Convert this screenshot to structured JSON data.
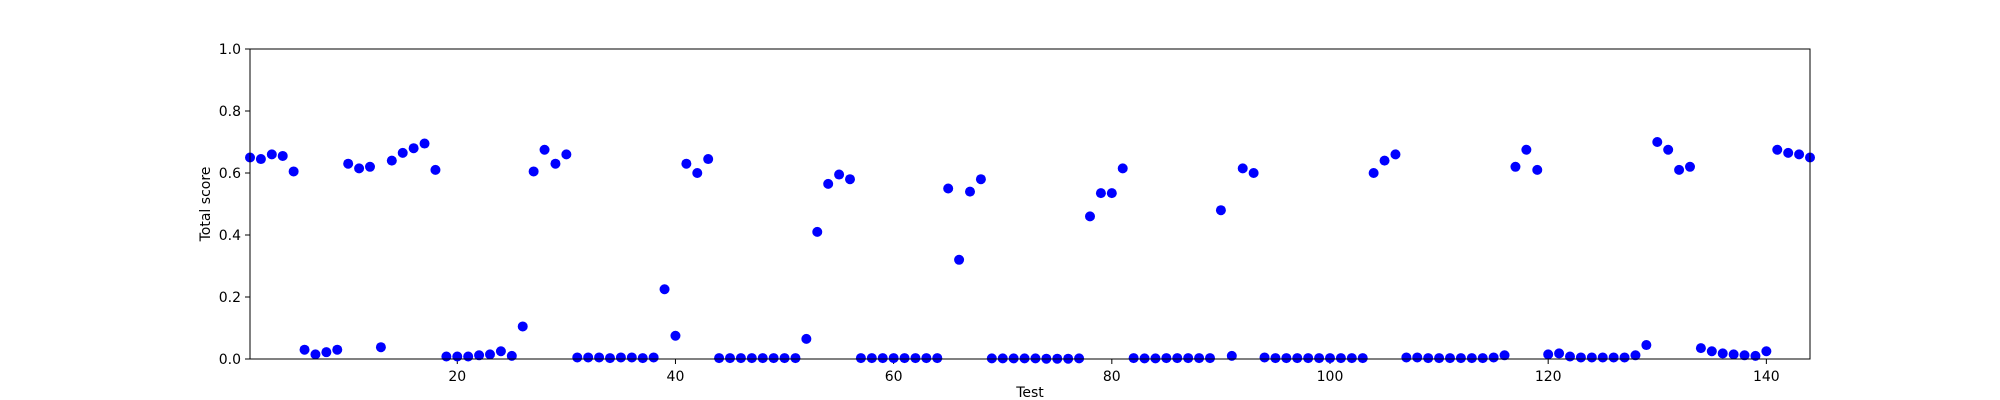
{
  "chart_data": {
    "type": "scatter",
    "title": "",
    "xlabel": "Test",
    "ylabel": "Total score",
    "xlim": [
      1,
      144
    ],
    "ylim": [
      0.0,
      1.0
    ],
    "xticks": [
      20,
      40,
      60,
      80,
      100,
      120,
      140
    ],
    "xtick_labels": [
      "20",
      "40",
      "60",
      "80",
      "100",
      "120",
      "140"
    ],
    "yticks": [
      0.0,
      0.2,
      0.4,
      0.6,
      0.8,
      1.0
    ],
    "ytick_labels": [
      "0.0",
      "0.2",
      "0.4",
      "0.6",
      "0.8",
      "1.0"
    ],
    "grid": false,
    "marker_color": "#0000ff",
    "series": [
      {
        "x": [
          1,
          2,
          3,
          4,
          5,
          6,
          7,
          8,
          9,
          10,
          11,
          12,
          13,
          14,
          15,
          16,
          17,
          18,
          19,
          20,
          21,
          22,
          23,
          24,
          25,
          26,
          27,
          28,
          29,
          30,
          31,
          32,
          33,
          34,
          35,
          36,
          37,
          38,
          39,
          40,
          41,
          42,
          43,
          44,
          45,
          46,
          47,
          48,
          49,
          50,
          51,
          52,
          53,
          54,
          55,
          56,
          57,
          58,
          59,
          60,
          61,
          62,
          63,
          64,
          65,
          66,
          67,
          68,
          69,
          70,
          71,
          72,
          73,
          74,
          75,
          76,
          77,
          78,
          79,
          80,
          81,
          82,
          83,
          84,
          85,
          86,
          87,
          88,
          89,
          90,
          91,
          92,
          93,
          94,
          95,
          96,
          97,
          98,
          99,
          100,
          101,
          102,
          103,
          104,
          105,
          106,
          107,
          108,
          109,
          110,
          111,
          112,
          113,
          114,
          115,
          116,
          117,
          118,
          119,
          120,
          121,
          122,
          123,
          124,
          125,
          126,
          127,
          128,
          129,
          130,
          131,
          132,
          133,
          134,
          135,
          136,
          137,
          138,
          139,
          140,
          141,
          142,
          143,
          144
        ],
        "values": [
          0.65,
          0.645,
          0.66,
          0.655,
          0.605,
          0.03,
          0.015,
          0.022,
          0.03,
          0.63,
          0.615,
          0.62,
          0.038,
          0.64,
          0.665,
          0.68,
          0.695,
          0.61,
          0.008,
          0.008,
          0.008,
          0.012,
          0.015,
          0.025,
          0.01,
          0.105,
          0.605,
          0.675,
          0.63,
          0.66,
          0.005,
          0.005,
          0.005,
          0.003,
          0.005,
          0.005,
          0.003,
          0.005,
          0.225,
          0.075,
          0.63,
          0.6,
          0.645,
          0.003,
          0.003,
          0.003,
          0.003,
          0.003,
          0.003,
          0.003,
          0.003,
          0.065,
          0.41,
          0.565,
          0.595,
          0.58,
          0.003,
          0.003,
          0.003,
          0.003,
          0.003,
          0.003,
          0.003,
          0.003,
          0.55,
          0.32,
          0.54,
          0.58,
          0.002,
          0.002,
          0.002,
          0.002,
          0.002,
          0.001,
          0.001,
          0.001,
          0.002,
          0.46,
          0.535,
          0.535,
          0.615,
          0.003,
          0.002,
          0.002,
          0.003,
          0.003,
          0.003,
          0.003,
          0.003,
          0.48,
          0.01,
          0.615,
          0.6,
          0.005,
          0.003,
          0.003,
          0.003,
          0.003,
          0.003,
          0.003,
          0.003,
          0.003,
          0.003,
          0.6,
          0.64,
          0.66,
          0.005,
          0.005,
          0.003,
          0.003,
          0.003,
          0.003,
          0.003,
          0.003,
          0.005,
          0.012,
          0.62,
          0.675,
          0.61,
          0.015,
          0.018,
          0.008,
          0.005,
          0.005,
          0.005,
          0.005,
          0.005,
          0.012,
          0.045,
          0.7,
          0.675,
          0.61,
          0.62,
          0.035,
          0.025,
          0.018,
          0.015,
          0.012,
          0.01,
          0.025,
          0.675,
          0.665,
          0.66,
          0.65
        ]
      }
    ]
  }
}
